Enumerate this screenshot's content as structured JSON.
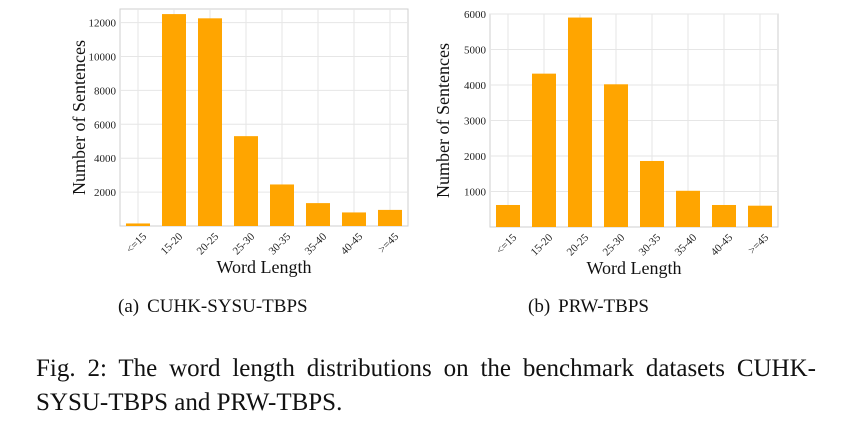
{
  "chart_data": [
    {
      "type": "bar",
      "title": "",
      "xlabel": "Word Length",
      "ylabel": "Number of Sentences",
      "categories": [
        "<=15",
        "15-20",
        "20-25",
        "25-30",
        "30-35",
        "35-40",
        "40-45",
        ">=45"
      ],
      "values": [
        150,
        12500,
        12250,
        5300,
        2450,
        1350,
        800,
        950
      ],
      "ylim": [
        0,
        12800
      ],
      "yticks": [
        2000,
        4000,
        6000,
        8000,
        10000,
        12000
      ],
      "grid": true,
      "color": "#FFA500"
    },
    {
      "type": "bar",
      "title": "",
      "xlabel": "Word Length",
      "ylabel": "Number of Sentences",
      "categories": [
        "<=15",
        "15-20",
        "20-25",
        "25-30",
        "30-35",
        "35-40",
        "40-45",
        ">=45"
      ],
      "values": [
        620,
        4320,
        5900,
        4020,
        1860,
        1020,
        620,
        600
      ],
      "ylim": [
        0,
        6000
      ],
      "yticks": [
        1000,
        2000,
        3000,
        4000,
        5000,
        6000
      ],
      "grid": true,
      "color": "#FFA500"
    }
  ],
  "captions": {
    "a_index": "(a)",
    "a_text": "CUHK-SYSU-TBPS",
    "b_index": "(b)",
    "b_text": "PRW-TBPS",
    "figure": "Fig. 2: The word length distributions on the benchmark datasets CUHK-SYSU-TBPS and PRW-TBPS."
  },
  "colors": {
    "bar": "#FFA500",
    "grid": "#e6e6e6",
    "axis": "#cfcfcf"
  }
}
